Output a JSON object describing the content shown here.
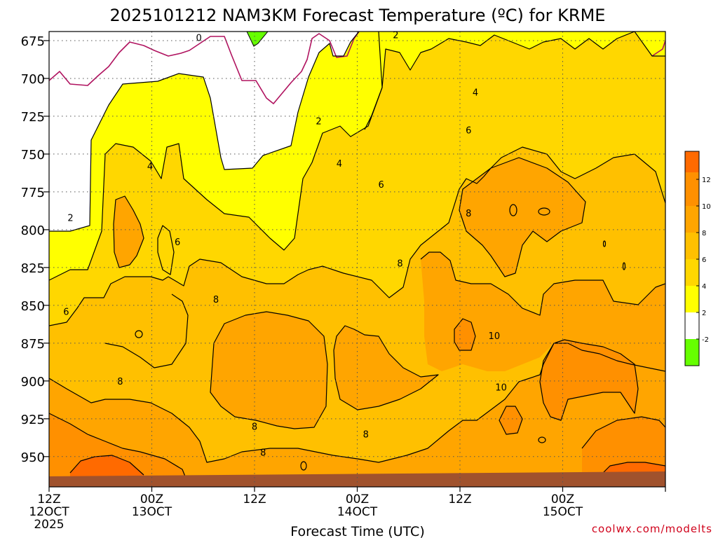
{
  "chart_data": {
    "type": "heatmap",
    "title": "2025101212 NAM3KM Forecast Temperature (ºC) for KRME",
    "xlabel": "Forecast Time (UTC)",
    "ylabel": "",
    "credit": "coolwx.com/modelts",
    "xlim_hours": [
      0,
      72
    ],
    "x_ticks": [
      {
        "hour": 0,
        "lines": [
          "12Z",
          "12OCT",
          "2025"
        ]
      },
      {
        "hour": 12,
        "lines": [
          "00Z",
          "13OCT"
        ]
      },
      {
        "hour": 24,
        "lines": [
          "12Z"
        ]
      },
      {
        "hour": 36,
        "lines": [
          "00Z",
          "14OCT"
        ]
      },
      {
        "hour": 48,
        "lines": [
          "12Z"
        ]
      },
      {
        "hour": 60,
        "lines": [
          "00Z",
          "15OCT"
        ]
      }
    ],
    "y_ticks": [
      "675",
      "700",
      "725",
      "750",
      "775",
      "800",
      "825",
      "850",
      "875",
      "900",
      "925",
      "950"
    ],
    "ylim_hPa": [
      669,
      970
    ],
    "colorbar": {
      "ticks": [
        "12",
        "10",
        "8",
        "6",
        "4",
        "2",
        "-2"
      ],
      "colors": {
        "-2": "#66ff00",
        "0": "#ffffff",
        "2": "#ffff00",
        "4": "#ffd700",
        "6": "#ffc000",
        "8": "#ffa500",
        "10": "#ff9000",
        "12": "#ff6a00",
        "ground": "#a0522d"
      }
    },
    "contour_labels": [
      {
        "text": "0",
        "hour": 17.5,
        "hPa": 673
      },
      {
        "text": "2",
        "hour": 40.5,
        "hPa": 671
      },
      {
        "text": "2",
        "hour": 31.5,
        "hPa": 728
      },
      {
        "text": "2",
        "hour": 2.5,
        "hPa": 792
      },
      {
        "text": "4",
        "hour": 11.8,
        "hPa": 758
      },
      {
        "text": "4",
        "hour": 33.9,
        "hPa": 756
      },
      {
        "text": "4",
        "hour": 49.8,
        "hPa": 709
      },
      {
        "text": "6",
        "hour": 49.0,
        "hPa": 734
      },
      {
        "text": "6",
        "hour": 38.8,
        "hPa": 770
      },
      {
        "text": "6",
        "hour": 15.0,
        "hPa": 808
      },
      {
        "text": "6",
        "hour": 2.0,
        "hPa": 854
      },
      {
        "text": "8",
        "hour": 19.5,
        "hPa": 846
      },
      {
        "text": "8",
        "hour": 8.3,
        "hPa": 900
      },
      {
        "text": "8",
        "hour": 41.0,
        "hPa": 822
      },
      {
        "text": "8",
        "hour": 49.0,
        "hPa": 789
      },
      {
        "text": "8",
        "hour": 24.0,
        "hPa": 930
      },
      {
        "text": "8",
        "hour": 25.0,
        "hPa": 947
      },
      {
        "text": "8",
        "hour": 37.0,
        "hPa": 935
      },
      {
        "text": "10",
        "hour": 52.0,
        "hPa": 870
      },
      {
        "text": "10",
        "hour": 52.8,
        "hPa": 904
      }
    ]
  }
}
